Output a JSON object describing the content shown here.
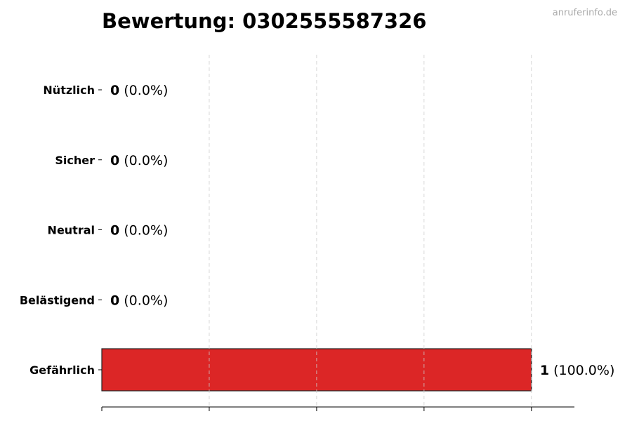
{
  "chart_data": {
    "type": "bar",
    "orientation": "horizontal",
    "title": "Bewertung: 0302555587326",
    "watermark": "anruferinfo.de",
    "categories": [
      "Nützlich",
      "Sicher",
      "Neutral",
      "Belästigend",
      "Gefährlich"
    ],
    "values": [
      0,
      0,
      0,
      0,
      1
    ],
    "value_labels": [
      "0",
      "0",
      "0",
      "0",
      "1"
    ],
    "percent_labels": [
      "(0.0%)",
      "(0.0%)",
      "(0.0%)",
      "(0.0%)",
      "(100.0%)"
    ],
    "colors": [
      "#22c55e",
      "#3b82f6",
      "#9ca3af",
      "#f97316",
      "#dc2626"
    ],
    "xlim": [
      0,
      1.1
    ],
    "xticks": [
      0,
      0.25,
      0.5,
      0.75,
      1.0
    ],
    "xtick_labels_shown": false,
    "grid": "x-dashed",
    "xlabel": "",
    "ylabel": ""
  }
}
